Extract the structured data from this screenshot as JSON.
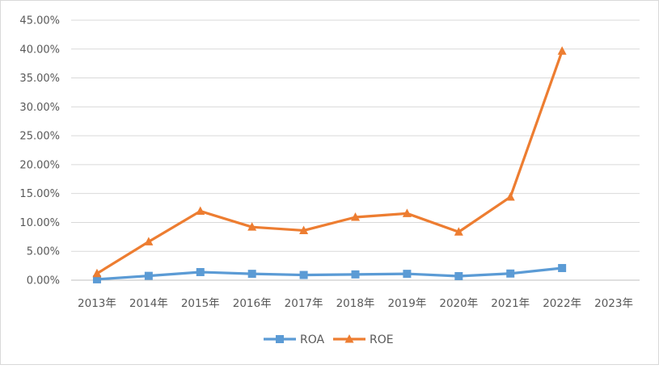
{
  "chart_data": {
    "type": "line",
    "categories": [
      "2013年",
      "2014年",
      "2015年",
      "2016年",
      "2017年",
      "2018年",
      "2019年",
      "2020年",
      "2021年",
      "2022年",
      "2023年"
    ],
    "series": [
      {
        "name": "ROA",
        "values": [
          0.0015,
          0.0075,
          0.014,
          0.011,
          0.009,
          0.01,
          0.011,
          0.007,
          0.0115,
          0.021,
          null
        ],
        "color": "#5b9bd5",
        "marker": "square"
      },
      {
        "name": "ROE",
        "values": [
          0.0115,
          0.0665,
          0.1195,
          0.092,
          0.086,
          0.109,
          0.1155,
          0.0835,
          0.144,
          0.3965,
          null
        ],
        "color": "#ed7d31",
        "marker": "triangle"
      }
    ],
    "yticks": [
      "0.00%",
      "5.00%",
      "10.00%",
      "15.00%",
      "20.00%",
      "25.00%",
      "30.00%",
      "35.00%",
      "40.00%",
      "45.00%"
    ],
    "ylim": [
      0,
      0.45
    ],
    "grid": true,
    "legend": "bottom",
    "title": "",
    "xlabel": "",
    "ylabel": ""
  }
}
